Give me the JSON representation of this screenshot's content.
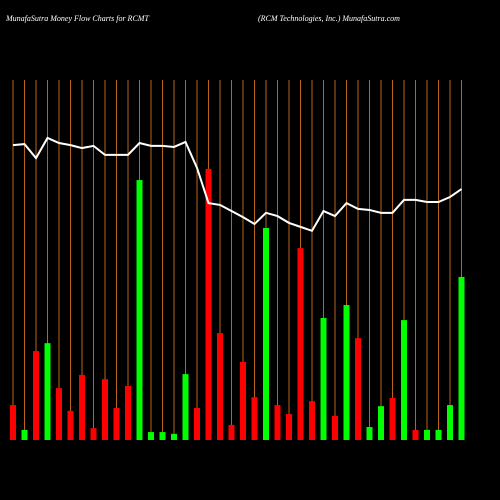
{
  "chart_data": {
    "type": "bar-line",
    "title": "MunafaSutra  Money Flow  Charts for RCMT",
    "subtitle": "(RCM Technologies,  Inc.) MunafaSutra.com",
    "categories": [
      null,
      null,
      null,
      null,
      null,
      null,
      null,
      null,
      null,
      null,
      null,
      null,
      null,
      null,
      null,
      null,
      null,
      null,
      null,
      null,
      null,
      null,
      null,
      null,
      null,
      null,
      null,
      null,
      null,
      null,
      null,
      null,
      null,
      null,
      null,
      null,
      null,
      null,
      null,
      null
    ],
    "values": [
      9.7,
      2.8,
      24.7,
      26.9,
      14.4,
      8.1,
      18.1,
      3.3,
      16.9,
      8.9,
      15.0,
      72.2,
      2.2,
      2.2,
      1.7,
      18.3,
      8.9,
      75.3,
      29.7,
      4.2,
      21.7,
      11.9,
      58.9,
      9.7,
      7.2,
      53.3,
      10.8,
      33.9,
      6.7,
      37.5,
      28.3,
      3.6,
      9.4,
      11.7,
      33.3,
      2.8,
      2.8,
      2.8,
      9.7,
      45.3
    ],
    "colors": [
      "#ff0000",
      "#00ff00",
      "#ff0000",
      "#00ff00",
      "#ff0000",
      "#ff0000",
      "#ff0000",
      "#ff0000",
      "#ff0000",
      "#ff0000",
      "#ff0000",
      "#00ff00",
      "#00ff00",
      "#00ff00",
      "#00ff00",
      "#00ff00",
      "#ff0000",
      "#ff0000",
      "#ff0000",
      "#ff0000",
      "#ff0000",
      "#ff0000",
      "#00ff00",
      "#ff0000",
      "#ff0000",
      "#ff0000",
      "#ff0000",
      "#00ff00",
      "#ff0000",
      "#00ff00",
      "#ff0000",
      "#00ff00",
      "#00ff00",
      "#ff0000",
      "#00ff00",
      "#ff0000",
      "#00ff00",
      "#00ff00",
      "#00ff00",
      "#00ff00"
    ],
    "line_values": [
      81.9,
      82.2,
      78.3,
      83.9,
      82.5,
      81.9,
      81.1,
      81.7,
      79.2,
      79.2,
      79.2,
      82.5,
      81.7,
      81.7,
      81.4,
      82.8,
      75.6,
      65.8,
      65.3,
      63.6,
      61.9,
      60.0,
      63.1,
      62.2,
      60.3,
      59.2,
      58.1,
      63.6,
      62.2,
      65.8,
      64.2,
      63.9,
      63.1,
      63.1,
      66.7,
      66.7,
      66.1,
      66.1,
      67.5,
      69.7
    ],
    "line_color": "#ffffff",
    "grid_color": "#b8651b",
    "ylim": [
      0,
      100
    ]
  }
}
